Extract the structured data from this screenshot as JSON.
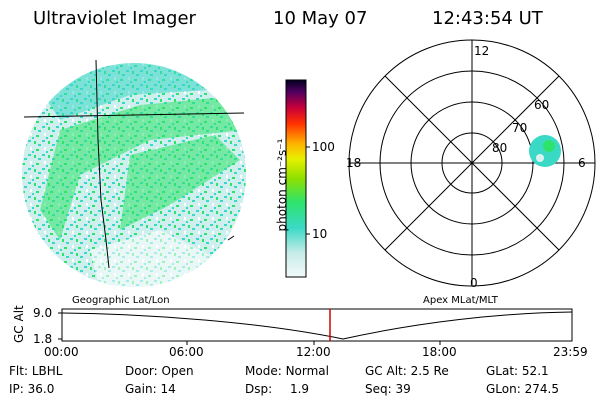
{
  "header": {
    "instrument": "Ultraviolet Imager",
    "date": "10 May 07",
    "time": "12:43:54 UT"
  },
  "colorbar": {
    "label": "photon cm⁻²s⁻¹",
    "ticks": [
      "100",
      "10"
    ]
  },
  "polar_plot": {
    "mlt_labels": [
      "12",
      "18",
      "6",
      "0"
    ],
    "lat_labels": [
      "80",
      "70",
      "60"
    ]
  },
  "timeline": {
    "left_title": "Geographic Lat/Lon",
    "right_title": "Apex MLat/MLT",
    "y_axis_label": "GC Alt",
    "y_ticks": [
      "9.0",
      "1.8"
    ],
    "x_ticks": [
      "00:00",
      "06:00",
      "12:00",
      "18:00",
      "23:59"
    ],
    "marker_color": "#d40000"
  },
  "status": {
    "row1": [
      {
        "label": "Flt:",
        "value": "LBHL"
      },
      {
        "label": "Door:",
        "value": "Open"
      },
      {
        "label": "Mode:",
        "value": "Normal"
      },
      {
        "label": "GC Alt:",
        "value": "2.5 Re"
      },
      {
        "label": "GLat:",
        "value": "52.1"
      }
    ],
    "row2": [
      {
        "label": "IP:",
        "value": "36.0"
      },
      {
        "label": "Gain:",
        "value": "14"
      },
      {
        "label": "Dsp:",
        "value": "1.9"
      },
      {
        "label": "Seq:",
        "value": "39"
      },
      {
        "label": "GLon:",
        "value": "274.5"
      }
    ]
  },
  "colors": {
    "aurora_green": "#2ee36b",
    "aurora_cyan": "#3ad9c6",
    "aurora_pale": "#dff0f0"
  }
}
